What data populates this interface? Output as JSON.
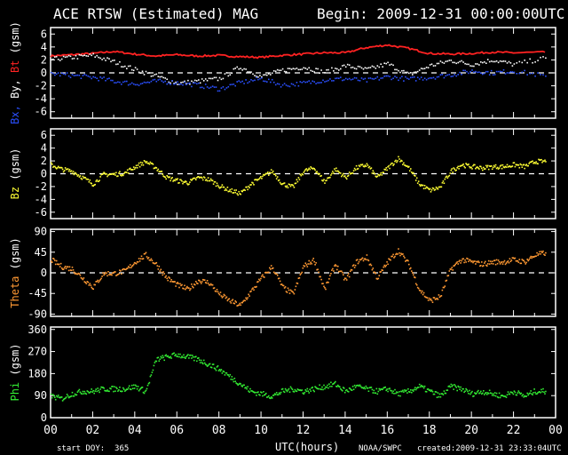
{
  "header": {
    "title": "ACE RTSW (Estimated) MAG",
    "begin": "Begin: 2009-12-31 00:00:00UTC"
  },
  "footer": {
    "start_doy": "start DOY:  365",
    "xlabel": "UTC(hours)",
    "agency": "NOAA/SWPC",
    "created": "created:2009-12-31 23:33:04UTC"
  },
  "colors": {
    "background": "#000000",
    "axes": "#ffffff",
    "bx": "#2a4fff",
    "by": "#ffffff",
    "bt": "#ff2222",
    "bz": "#ffff33",
    "theta": "#ff9933",
    "phi": "#33ee33"
  },
  "chart_data": [
    {
      "type": "scatter",
      "ylabel_parts": [
        {
          "text": "Bx,",
          "color": "#2a4fff"
        },
        {
          "text": "By,",
          "color": "#ffffff"
        },
        {
          "text": "Bt",
          "color": "#ff2222"
        },
        {
          "text": "(gsm)",
          "color": "#ffffff"
        }
      ],
      "ylim": [
        -7,
        7
      ],
      "yticks": [
        6,
        4,
        2,
        0,
        -2,
        -4,
        -6
      ],
      "zero_line": 0,
      "xlim": [
        0,
        24
      ],
      "xticks": [
        "00",
        "02",
        "04",
        "06",
        "08",
        "10",
        "12",
        "14",
        "16",
        "18",
        "20",
        "22",
        "00"
      ],
      "series": [
        {
          "key": "bt",
          "style": "line",
          "x": [
            0,
            1,
            2,
            3,
            4,
            5,
            6,
            7,
            8,
            9,
            10,
            11,
            12,
            13,
            14,
            15,
            16,
            17,
            18,
            19,
            20,
            21,
            22,
            23.5
          ],
          "values": [
            2.6,
            2.8,
            3.0,
            3.3,
            2.9,
            2.6,
            2.8,
            2.6,
            2.7,
            2.5,
            2.4,
            2.7,
            2.9,
            3.1,
            3.1,
            3.9,
            4.3,
            3.8,
            3.0,
            2.9,
            3.0,
            3.2,
            3.1,
            3.2
          ]
        },
        {
          "key": "by",
          "style": "scatter",
          "x": [
            0,
            1,
            2,
            3,
            4,
            5,
            6,
            7,
            8,
            9,
            10,
            11,
            12,
            13,
            14,
            15,
            16,
            17,
            18,
            19,
            20,
            21,
            22,
            23.5
          ],
          "values": [
            2.2,
            2.5,
            2.8,
            1.8,
            0.6,
            -0.4,
            -1.5,
            -1.2,
            -0.8,
            1.0,
            -0.5,
            0.5,
            1.0,
            0.2,
            1.2,
            0.6,
            1.5,
            -0.2,
            1.2,
            2.0,
            1.4,
            2.1,
            1.4,
            2.4
          ]
        },
        {
          "key": "bx",
          "style": "scatter",
          "x": [
            0,
            1,
            2,
            3,
            4,
            5,
            6,
            7,
            8,
            9,
            10,
            11,
            12,
            13,
            14,
            15,
            16,
            17,
            18,
            19,
            20,
            21,
            22,
            23.5
          ],
          "values": [
            0.0,
            -0.3,
            -0.6,
            -1.2,
            -1.6,
            -1.2,
            -1.4,
            -1.8,
            -2.4,
            -1.4,
            -0.8,
            -1.8,
            -1.5,
            -1.0,
            -0.8,
            -1.1,
            -0.5,
            -0.9,
            -0.6,
            -0.2,
            0.4,
            0.1,
            0.4,
            -0.4
          ]
        }
      ]
    },
    {
      "type": "scatter",
      "ylabel_parts": [
        {
          "text": "Bz",
          "color": "#ffff33"
        },
        {
          "text": "(gsm)",
          "color": "#ffffff"
        }
      ],
      "ylim": [
        -7,
        7
      ],
      "yticks": [
        6,
        4,
        2,
        0,
        -2,
        -4,
        -6
      ],
      "zero_line": 0,
      "xlim": [
        0,
        24
      ],
      "xticks": [
        "00",
        "02",
        "04",
        "06",
        "08",
        "10",
        "12",
        "14",
        "16",
        "18",
        "20",
        "22",
        "00"
      ],
      "series": [
        {
          "key": "bz",
          "style": "scatter",
          "x": [
            0,
            0.5,
            1,
            1.5,
            2,
            2.5,
            3,
            3.5,
            4,
            4.5,
            5,
            5.5,
            6,
            6.5,
            7,
            7.5,
            8,
            8.5,
            9,
            9.5,
            10,
            10.5,
            11,
            11.5,
            12,
            12.5,
            13,
            13.5,
            14,
            14.5,
            15,
            15.5,
            16,
            16.5,
            17,
            17.5,
            18,
            18.5,
            19,
            19.5,
            20,
            20.5,
            21,
            21.5,
            22,
            22.5,
            23,
            23.5
          ],
          "values": [
            1.5,
            0.8,
            0.5,
            -0.5,
            -1.5,
            0.0,
            0.0,
            0.2,
            1.2,
            2.0,
            1.0,
            -0.5,
            -1.0,
            -1.3,
            -0.5,
            -0.8,
            -1.8,
            -2.5,
            -3.0,
            -1.5,
            -0.5,
            0.5,
            -1.5,
            -2.0,
            0.5,
            1.0,
            -1.2,
            0.8,
            -0.5,
            1.0,
            1.5,
            -0.5,
            1.0,
            2.5,
            1.0,
            -1.5,
            -2.5,
            -2.0,
            0.5,
            1.5,
            1.2,
            1.0,
            1.2,
            1.2,
            1.5,
            1.2,
            2.0,
            2.0
          ]
        }
      ]
    },
    {
      "type": "scatter",
      "ylabel_parts": [
        {
          "text": "Theta",
          "color": "#ff9933"
        },
        {
          "text": "(gsm)",
          "color": "#ffffff"
        }
      ],
      "ylim": [
        -95,
        95
      ],
      "yticks": [
        90,
        45,
        0,
        -45,
        -90
      ],
      "zero_line": 0,
      "xlim": [
        0,
        24
      ],
      "xticks": [
        "00",
        "02",
        "04",
        "06",
        "08",
        "10",
        "12",
        "14",
        "16",
        "18",
        "20",
        "22",
        "00"
      ],
      "series": [
        {
          "key": "theta",
          "style": "scatter",
          "x": [
            0,
            0.5,
            1,
            1.5,
            2,
            2.5,
            3,
            3.5,
            4,
            4.5,
            5,
            5.5,
            6,
            6.5,
            7,
            7.5,
            8,
            8.5,
            9,
            9.5,
            10,
            10.5,
            11,
            11.5,
            12,
            12.5,
            13,
            13.5,
            14,
            14.5,
            15,
            15.5,
            16,
            16.5,
            17,
            17.5,
            18,
            18.5,
            19,
            19.5,
            20,
            20.5,
            21,
            21.5,
            22,
            22.5,
            23,
            23.5
          ],
          "values": [
            30,
            15,
            10,
            -10,
            -30,
            0,
            0,
            5,
            25,
            40,
            20,
            -10,
            -25,
            -35,
            -15,
            -20,
            -45,
            -60,
            -70,
            -40,
            -10,
            15,
            -30,
            -45,
            15,
            30,
            -35,
            20,
            -15,
            25,
            35,
            -10,
            25,
            50,
            20,
            -35,
            -60,
            -50,
            10,
            30,
            25,
            20,
            25,
            25,
            30,
            25,
            40,
            45
          ]
        }
      ]
    },
    {
      "type": "scatter",
      "ylabel_parts": [
        {
          "text": "Phi",
          "color": "#33ee33"
        },
        {
          "text": "(gsm)",
          "color": "#ffffff"
        }
      ],
      "ylim": [
        0,
        370
      ],
      "yticks": [
        360,
        270,
        180,
        90,
        0
      ],
      "zero_line": null,
      "xlim": [
        0,
        24
      ],
      "xticks": [
        "00",
        "02",
        "04",
        "06",
        "08",
        "10",
        "12",
        "14",
        "16",
        "18",
        "20",
        "22",
        "00"
      ],
      "series": [
        {
          "key": "phi",
          "style": "scatter",
          "x": [
            0,
            0.5,
            1,
            1.5,
            2,
            2.5,
            3,
            3.5,
            4,
            4.5,
            5,
            5.5,
            6,
            6.5,
            7,
            7.5,
            8,
            8.5,
            9,
            9.5,
            10,
            10.5,
            11,
            11.5,
            12,
            12.5,
            13,
            13.5,
            14,
            14.5,
            15,
            15.5,
            16,
            16.5,
            17,
            17.5,
            18,
            18.5,
            19,
            19.5,
            20,
            20.5,
            21,
            21.5,
            22,
            22.5,
            23,
            23.5
          ],
          "values": [
            90,
            80,
            100,
            110,
            110,
            120,
            120,
            120,
            130,
            110,
            240,
            250,
            260,
            250,
            240,
            220,
            200,
            170,
            140,
            110,
            100,
            90,
            110,
            120,
            110,
            120,
            130,
            140,
            110,
            130,
            120,
            110,
            120,
            100,
            110,
            130,
            110,
            90,
            130,
            120,
            100,
            110,
            100,
            90,
            110,
            90,
            110,
            110
          ]
        }
      ]
    }
  ]
}
